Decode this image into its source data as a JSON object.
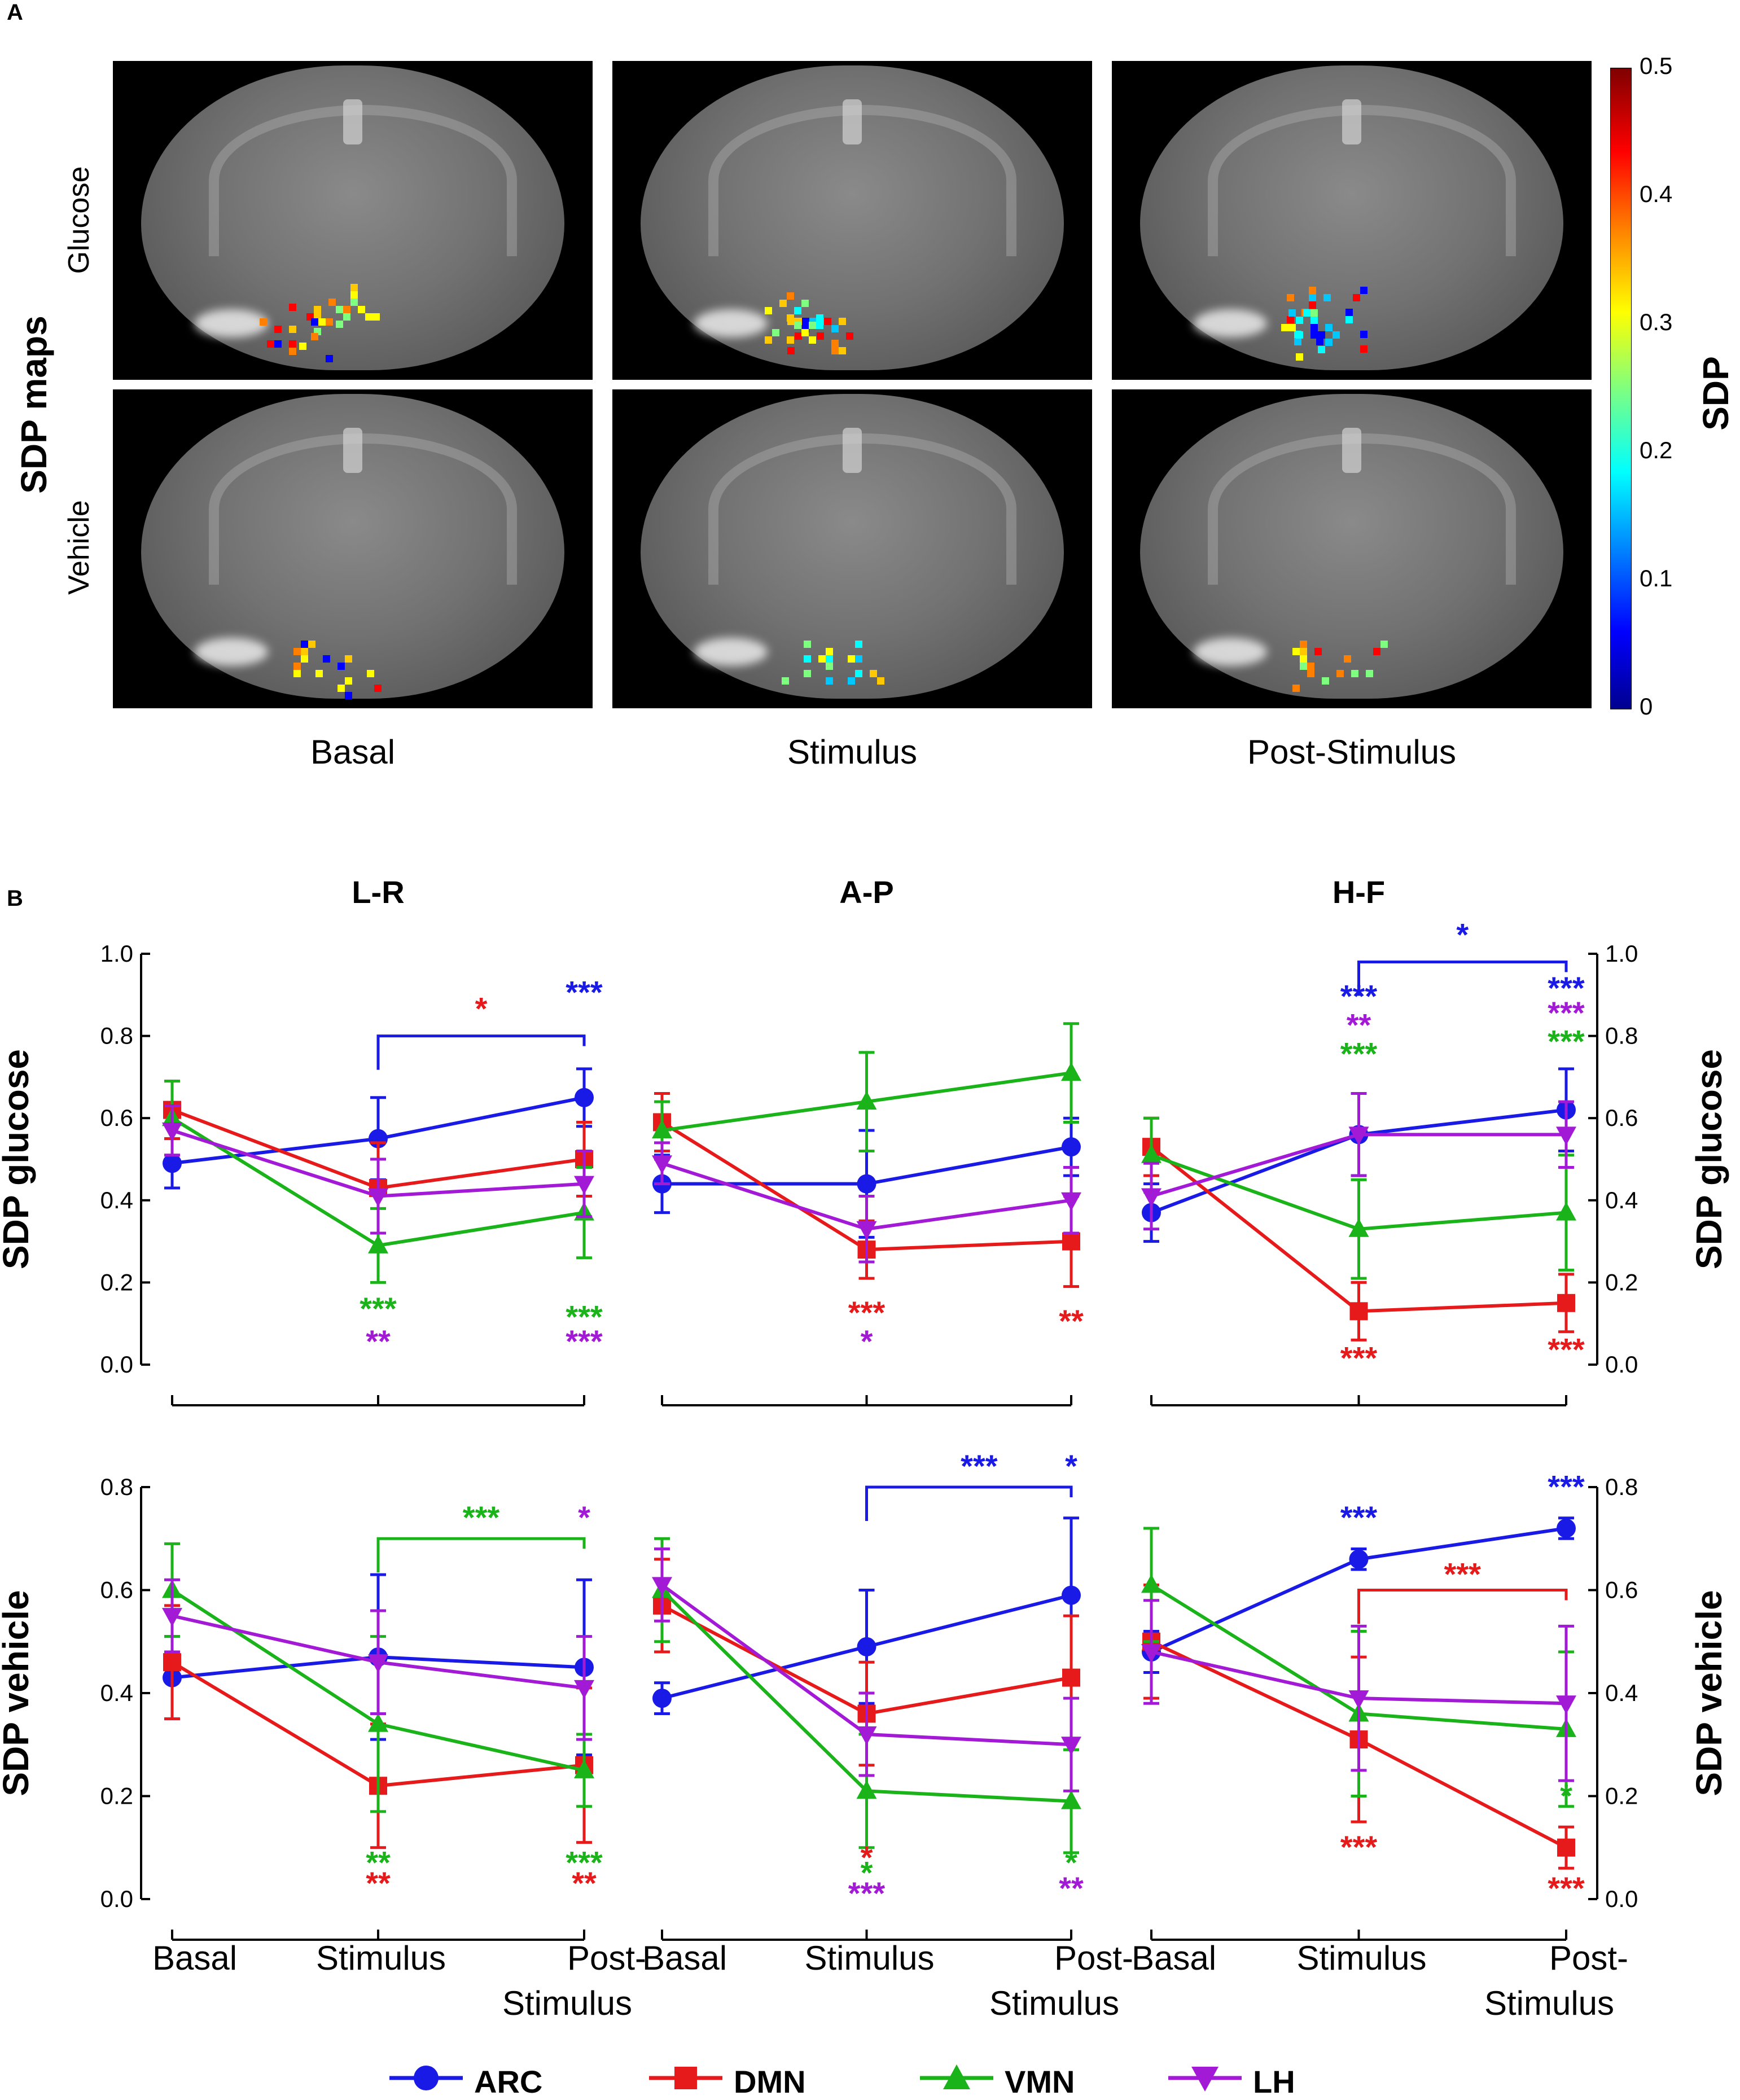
{
  "panel_a_label": "A",
  "panel_b_label": "B",
  "sdp_maps_label": "SDP maps",
  "row_labels": [
    "Glucose",
    "Vehicle"
  ],
  "col_labels": [
    "Basal",
    "Stimulus",
    "Post-Stimulus"
  ],
  "colorbar": {
    "label": "SDP",
    "ticks": [
      "0",
      "0.1",
      "0.2",
      "0.3",
      "0.4",
      "0.5"
    ]
  },
  "colors": {
    "ARC": "#1a1ae6",
    "DMN": "#e61a1a",
    "VMN": "#1ab31a",
    "LH": "#a31ad6"
  },
  "legend": [
    {
      "name": "ARC",
      "marker": "circle"
    },
    {
      "name": "DMN",
      "marker": "square"
    },
    {
      "name": "VMN",
      "marker": "triangle-up"
    },
    {
      "name": "LH",
      "marker": "triangle-down"
    }
  ],
  "chart_data": [
    {
      "type": "line",
      "title": "L-R",
      "ylabel": "SDP glucose",
      "ylim": [
        0,
        1.0
      ],
      "yticks": [
        "0.0",
        "0.2",
        "0.4",
        "0.6",
        "0.8",
        "1.0"
      ],
      "categories": [
        "Basal",
        "Stimulus",
        "Post-Stimulus"
      ],
      "series": [
        {
          "name": "ARC",
          "values": [
            0.49,
            0.55,
            0.65
          ],
          "errors": [
            0.06,
            0.1,
            0.07
          ]
        },
        {
          "name": "DMN",
          "values": [
            0.62,
            0.43,
            0.5
          ],
          "errors": [
            0.07,
            0.11,
            0.09
          ]
        },
        {
          "name": "VMN",
          "values": [
            0.6,
            0.29,
            0.37
          ],
          "errors": [
            0.09,
            0.09,
            0.11
          ]
        },
        {
          "name": "LH",
          "values": [
            0.57,
            0.41,
            0.44
          ],
          "errors": [
            0.06,
            0.09,
            0.08
          ]
        }
      ],
      "annotations": [
        {
          "text": "*",
          "color": "DMN",
          "x": 1.5,
          "y": 0.84,
          "bracket": {
            "from": 1,
            "to": 2,
            "y": 0.8,
            "color": "ARC"
          }
        },
        {
          "text": "***",
          "color": "ARC",
          "x": 2,
          "y": 0.88
        },
        {
          "text": "***",
          "color": "VMN",
          "x": 1,
          "y": 0.11
        },
        {
          "text": "**",
          "color": "LH",
          "x": 1,
          "y": 0.03
        },
        {
          "text": "***",
          "color": "VMN",
          "x": 2,
          "y": 0.09
        },
        {
          "text": "***",
          "color": "LH",
          "x": 2,
          "y": 0.03
        }
      ]
    },
    {
      "type": "line",
      "title": "A-P",
      "ylabel": "",
      "ylim": [
        0,
        1.0
      ],
      "categories": [
        "Basal",
        "Stimulus",
        "Post-Stimulus"
      ],
      "series": [
        {
          "name": "ARC",
          "values": [
            0.44,
            0.44,
            0.53
          ],
          "errors": [
            0.07,
            0.13,
            0.07
          ]
        },
        {
          "name": "DMN",
          "values": [
            0.59,
            0.28,
            0.3
          ],
          "errors": [
            0.07,
            0.07,
            0.11
          ]
        },
        {
          "name": "VMN",
          "values": [
            0.57,
            0.64,
            0.71
          ],
          "errors": [
            0.07,
            0.12,
            0.12
          ]
        },
        {
          "name": "LH",
          "values": [
            0.49,
            0.33,
            0.4
          ],
          "errors": [
            0.05,
            0.08,
            0.08
          ]
        }
      ],
      "annotations": [
        {
          "text": "***",
          "color": "DMN",
          "x": 1,
          "y": 0.1
        },
        {
          "text": "*",
          "color": "LH",
          "x": 1,
          "y": 0.03
        },
        {
          "text": "**",
          "color": "DMN",
          "x": 2,
          "y": 0.08
        }
      ]
    },
    {
      "type": "line",
      "title": "H-F",
      "ylabel": "SDP glucose",
      "ylim": [
        0,
        1.0
      ],
      "yticks": [
        "0.0",
        "0.2",
        "0.4",
        "0.6",
        "0.8",
        "1.0"
      ],
      "yaxis_right": true,
      "categories": [
        "Basal",
        "Stimulus",
        "Post-Stimulus"
      ],
      "series": [
        {
          "name": "ARC",
          "values": [
            0.37,
            0.56,
            0.62
          ],
          "errors": [
            0.07,
            0.1,
            0.1
          ]
        },
        {
          "name": "DMN",
          "values": [
            0.53,
            0.13,
            0.15
          ],
          "errors": [
            0.07,
            0.07,
            0.07
          ]
        },
        {
          "name": "VMN",
          "values": [
            0.51,
            0.33,
            0.37
          ],
          "errors": [
            0.09,
            0.12,
            0.14
          ]
        },
        {
          "name": "LH",
          "values": [
            0.41,
            0.56,
            0.56
          ],
          "errors": [
            0.08,
            0.1,
            0.08
          ]
        }
      ],
      "annotations": [
        {
          "text": "*",
          "color": "ARC",
          "x": 1.5,
          "y": 1.02,
          "bracket": {
            "from": 1,
            "to": 2,
            "y": 0.98,
            "color": "ARC"
          }
        },
        {
          "text": "***",
          "color": "ARC",
          "x": 1,
          "y": 0.87
        },
        {
          "text": "**",
          "color": "LH",
          "x": 1,
          "y": 0.8
        },
        {
          "text": "***",
          "color": "VMN",
          "x": 1,
          "y": 0.73
        },
        {
          "text": "***",
          "color": "ARC",
          "x": 2,
          "y": 0.89
        },
        {
          "text": "***",
          "color": "LH",
          "x": 2,
          "y": 0.83
        },
        {
          "text": "***",
          "color": "VMN",
          "x": 2,
          "y": 0.76
        },
        {
          "text": "***",
          "color": "DMN",
          "x": 1,
          "y": -0.01
        },
        {
          "text": "***",
          "color": "DMN",
          "x": 2,
          "y": 0.01
        }
      ]
    },
    {
      "type": "line",
      "title": "",
      "ylabel": "SDP vehicle",
      "ylim": [
        0,
        0.8
      ],
      "yticks": [
        "0.0",
        "0.2",
        "0.4",
        "0.6",
        "0.8"
      ],
      "categories": [
        "Basal",
        "Stimulus",
        "Post-Stimulus"
      ],
      "series": [
        {
          "name": "ARC",
          "values": [
            0.43,
            0.47,
            0.45
          ],
          "errors": [
            0.08,
            0.16,
            0.17
          ]
        },
        {
          "name": "DMN",
          "values": [
            0.46,
            0.22,
            0.26
          ],
          "errors": [
            0.11,
            0.12,
            0.15
          ]
        },
        {
          "name": "VMN",
          "values": [
            0.6,
            0.34,
            0.25
          ],
          "errors": [
            0.09,
            0.17,
            0.07
          ]
        },
        {
          "name": "LH",
          "values": [
            0.55,
            0.46,
            0.41
          ],
          "errors": [
            0.07,
            0.1,
            0.1
          ]
        }
      ],
      "annotations": [
        {
          "text": "***",
          "color": "VMN",
          "x": 1.5,
          "y": 0.72,
          "bracket": {
            "from": 1,
            "to": 2,
            "y": 0.7,
            "color": "VMN"
          }
        },
        {
          "text": "*",
          "color": "LH",
          "x": 2,
          "y": 0.72
        },
        {
          "text": "**",
          "color": "VMN",
          "x": 1,
          "y": 0.05
        },
        {
          "text": "**",
          "color": "DMN",
          "x": 1,
          "y": 0.01
        },
        {
          "text": "***",
          "color": "VMN",
          "x": 2,
          "y": 0.05
        },
        {
          "text": "**",
          "color": "DMN",
          "x": 2,
          "y": 0.01
        }
      ]
    },
    {
      "type": "line",
      "title": "",
      "ylabel": "",
      "ylim": [
        0,
        0.8
      ],
      "categories": [
        "Basal",
        "Stimulus",
        "Post-Stimulus"
      ],
      "series": [
        {
          "name": "ARC",
          "values": [
            0.39,
            0.49,
            0.59
          ],
          "errors": [
            0.03,
            0.11,
            0.15
          ]
        },
        {
          "name": "DMN",
          "values": [
            0.57,
            0.36,
            0.43
          ],
          "errors": [
            0.09,
            0.1,
            0.12
          ]
        },
        {
          "name": "VMN",
          "values": [
            0.6,
            0.21,
            0.19
          ],
          "errors": [
            0.1,
            0.11,
            0.1
          ]
        },
        {
          "name": "LH",
          "values": [
            0.61,
            0.32,
            0.3
          ],
          "errors": [
            0.07,
            0.08,
            0.09
          ]
        }
      ],
      "annotations": [
        {
          "text": "***",
          "color": "ARC",
          "x": 1.55,
          "y": 0.82,
          "bracket": {
            "from": 1,
            "to": 2,
            "y": 0.8,
            "color": "ARC"
          }
        },
        {
          "text": "*",
          "color": "ARC",
          "x": 2,
          "y": 0.82
        },
        {
          "text": "*",
          "color": "DMN",
          "x": 1,
          "y": 0.06
        },
        {
          "text": "*",
          "color": "VMN",
          "x": 1,
          "y": 0.03
        },
        {
          "text": "***",
          "color": "LH",
          "x": 1,
          "y": -0.01
        },
        {
          "text": "*",
          "color": "VMN",
          "x": 2,
          "y": 0.05
        },
        {
          "text": "**",
          "color": "LH",
          "x": 2,
          "y": 0.0
        }
      ]
    },
    {
      "type": "line",
      "title": "",
      "ylabel": "SDP vehicle",
      "ylim": [
        0,
        0.8
      ],
      "yticks": [
        "0.0",
        "0.2",
        "0.4",
        "0.6",
        "0.8"
      ],
      "yaxis_right": true,
      "categories": [
        "Basal",
        "Stimulus",
        "Post-Stimulus"
      ],
      "series": [
        {
          "name": "ARC",
          "values": [
            0.48,
            0.66,
            0.72
          ],
          "errors": [
            0.04,
            0.02,
            0.02
          ]
        },
        {
          "name": "DMN",
          "values": [
            0.5,
            0.31,
            0.1
          ],
          "errors": [
            0.11,
            0.16,
            0.04
          ]
        },
        {
          "name": "VMN",
          "values": [
            0.61,
            0.36,
            0.33
          ],
          "errors": [
            0.11,
            0.16,
            0.15
          ]
        },
        {
          "name": "LH",
          "values": [
            0.48,
            0.39,
            0.38
          ],
          "errors": [
            0.1,
            0.14,
            0.15
          ]
        }
      ],
      "annotations": [
        {
          "text": "***",
          "color": "ARC",
          "x": 1,
          "y": 0.72
        },
        {
          "text": "***",
          "color": "ARC",
          "x": 2,
          "y": 0.78
        },
        {
          "text": "***",
          "color": "DMN",
          "x": 1.5,
          "y": 0.61,
          "bracket": {
            "from": 1,
            "to": 2,
            "y": 0.6,
            "color": "DMN"
          }
        },
        {
          "text": "***",
          "color": "DMN",
          "x": 1,
          "y": 0.08
        },
        {
          "text": "*",
          "color": "VMN",
          "x": 2,
          "y": 0.18
        },
        {
          "text": "***",
          "color": "DMN",
          "x": 2,
          "y": 0.0
        }
      ]
    }
  ]
}
